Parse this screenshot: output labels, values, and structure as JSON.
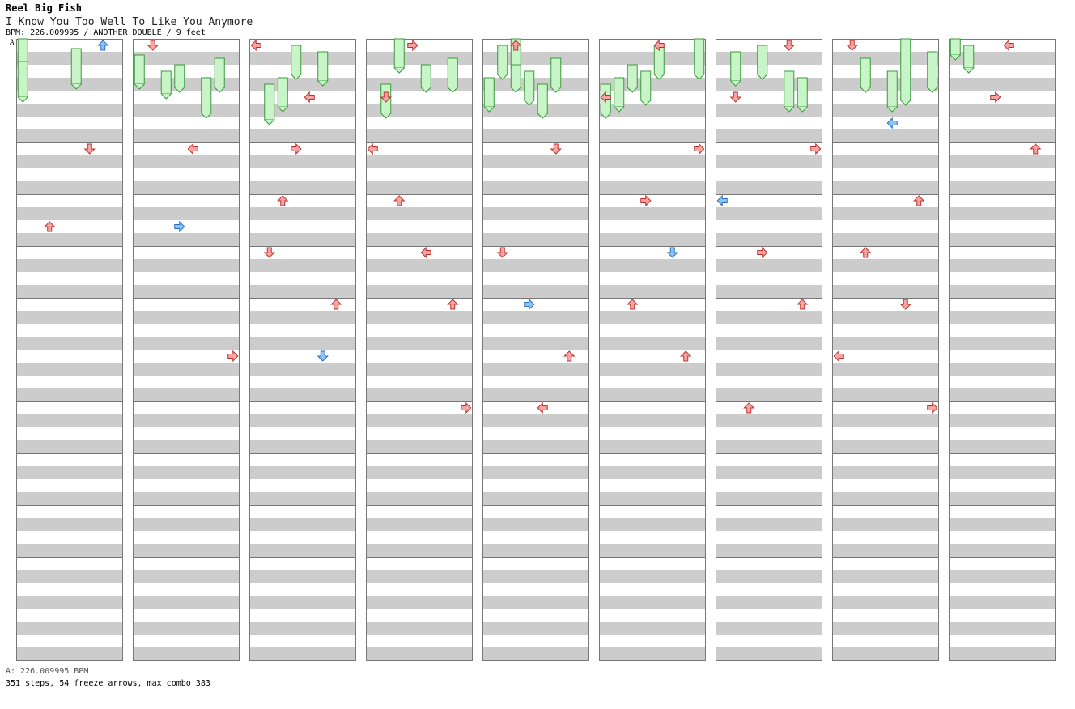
{
  "header": {
    "artist": "Reel Big Fish",
    "title": "I Know You Too Well To Like You Anymore",
    "info": "BPM: 226.009995 / ANOTHER DOUBLE / 9 feet"
  },
  "marker": "A",
  "footer": {
    "bpm_line": "A: 226.009995 BPM",
    "stats": "351 steps, 54 freeze arrows, max combo 383"
  },
  "chart_data": {
    "type": "step-chart",
    "mode": "double",
    "lanes": [
      "left",
      "down",
      "up",
      "right",
      "left",
      "down",
      "up",
      "right"
    ],
    "columns": 9,
    "measures_per_column": 12,
    "rows_per_measure": 16,
    "colors": {
      "quarter": "#f4a4a4",
      "eighth": "#8ec2f5",
      "freeze": "#c8f5c8",
      "stripe": "#cccccc"
    },
    "notes": [
      [
        0,
        0,
        6,
        "eighth"
      ],
      [
        0,
        4,
        5,
        "quarter"
      ],
      [
        0,
        7,
        2,
        "quarter"
      ],
      [
        1,
        0,
        1,
        "quarter"
      ],
      [
        1,
        4,
        4,
        "quarter"
      ],
      [
        1,
        7,
        3,
        "eighth"
      ],
      [
        1,
        12,
        7,
        "quarter"
      ],
      [
        2,
        0,
        0,
        "quarter"
      ],
      [
        2,
        2,
        4,
        "quarter"
      ],
      [
        2,
        4,
        3,
        "quarter"
      ],
      [
        2,
        6,
        2,
        "quarter"
      ],
      [
        2,
        8,
        1,
        "quarter"
      ],
      [
        2,
        10,
        6,
        "quarter"
      ],
      [
        2,
        12,
        5,
        "eighth"
      ],
      [
        3,
        0,
        3,
        "quarter"
      ],
      [
        3,
        2,
        1,
        "quarter"
      ],
      [
        3,
        4,
        0,
        "quarter"
      ],
      [
        3,
        6,
        2,
        "quarter"
      ],
      [
        3,
        8,
        4,
        "quarter"
      ],
      [
        3,
        10,
        6,
        "quarter"
      ],
      [
        3,
        14,
        7,
        "quarter"
      ],
      [
        4,
        0,
        2,
        "quarter"
      ],
      [
        4,
        4,
        5,
        "quarter"
      ],
      [
        4,
        8,
        1,
        "quarter"
      ],
      [
        4,
        10,
        3,
        "eighth"
      ],
      [
        4,
        12,
        6,
        "quarter"
      ],
      [
        4,
        14,
        4,
        "quarter"
      ],
      [
        5,
        0,
        4,
        "quarter"
      ],
      [
        5,
        2,
        0,
        "quarter"
      ],
      [
        5,
        4,
        7,
        "quarter"
      ],
      [
        5,
        6,
        3,
        "quarter"
      ],
      [
        5,
        8,
        5,
        "eighth"
      ],
      [
        5,
        10,
        2,
        "quarter"
      ],
      [
        5,
        12,
        6,
        "quarter"
      ],
      [
        6,
        0,
        5,
        "quarter"
      ],
      [
        6,
        2,
        1,
        "quarter"
      ],
      [
        6,
        4,
        7,
        "quarter"
      ],
      [
        6,
        6,
        0,
        "eighth"
      ],
      [
        6,
        8,
        3,
        "quarter"
      ],
      [
        6,
        10,
        6,
        "quarter"
      ],
      [
        6,
        14,
        2,
        "quarter"
      ],
      [
        7,
        0,
        1,
        "quarter"
      ],
      [
        7,
        3,
        4,
        "eighth"
      ],
      [
        7,
        6,
        6,
        "quarter"
      ],
      [
        7,
        8,
        2,
        "quarter"
      ],
      [
        7,
        10,
        5,
        "quarter"
      ],
      [
        7,
        12,
        0,
        "quarter"
      ],
      [
        7,
        14,
        7,
        "quarter"
      ],
      [
        8,
        0,
        4,
        "quarter"
      ],
      [
        8,
        2,
        3,
        "quarter"
      ],
      [
        8,
        4,
        6,
        "quarter"
      ]
    ],
    "freezes": [
      [
        0,
        0,
        0,
        6
      ],
      [
        0,
        0,
        7,
        8
      ],
      [
        0,
        4,
        3,
        8
      ],
      [
        1,
        0,
        5,
        6
      ],
      [
        1,
        2,
        10,
        4
      ],
      [
        1,
        3,
        8,
        4
      ],
      [
        1,
        6,
        6,
        6
      ],
      [
        1,
        5,
        12,
        8
      ],
      [
        2,
        3,
        2,
        6
      ],
      [
        2,
        5,
        4,
        6
      ],
      [
        2,
        2,
        12,
        6
      ],
      [
        2,
        1,
        14,
        8
      ],
      [
        3,
        2,
        0,
        6
      ],
      [
        3,
        4,
        8,
        4
      ],
      [
        3,
        6,
        6,
        6
      ],
      [
        3,
        1,
        14,
        6
      ],
      [
        4,
        2,
        0,
        6
      ],
      [
        4,
        1,
        2,
        6
      ],
      [
        4,
        3,
        10,
        6
      ],
      [
        4,
        2,
        8,
        4
      ],
      [
        4,
        5,
        6,
        6
      ],
      [
        4,
        0,
        12,
        6
      ],
      [
        4,
        4,
        14,
        6
      ],
      [
        5,
        4,
        2,
        6
      ],
      [
        5,
        2,
        8,
        4
      ],
      [
        5,
        1,
        12,
        6
      ],
      [
        5,
        3,
        10,
        6
      ],
      [
        5,
        0,
        14,
        6
      ],
      [
        5,
        7,
        0,
        8
      ],
      [
        6,
        1,
        4,
        6
      ],
      [
        6,
        5,
        10,
        8
      ],
      [
        6,
        3,
        2,
        6
      ],
      [
        6,
        6,
        12,
        6
      ],
      [
        7,
        4,
        10,
        8
      ],
      [
        7,
        2,
        6,
        6
      ],
      [
        7,
        5,
        0,
        16
      ],
      [
        7,
        7,
        4,
        8
      ],
      [
        8,
        0,
        0,
        2
      ],
      [
        8,
        1,
        2,
        4
      ]
    ]
  }
}
